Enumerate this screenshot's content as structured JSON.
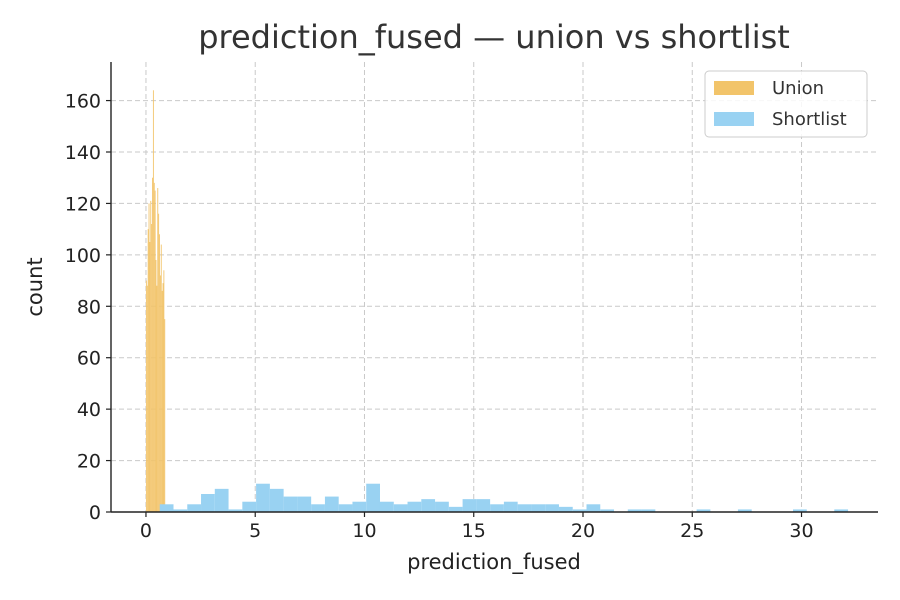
{
  "chart_data": {
    "type": "bar",
    "subtype": "histogram-overlay",
    "title": "prediction_fused — union vs shortlist",
    "xlabel": "prediction_fused",
    "ylabel": "count",
    "xlim": [
      -1.6,
      33.5
    ],
    "ylim": [
      0,
      175
    ],
    "xticks": [
      0,
      5,
      10,
      15,
      20,
      25,
      30
    ],
    "yticks": [
      0,
      20,
      40,
      60,
      80,
      100,
      120,
      140,
      160
    ],
    "grid": true,
    "legend_position": "top-right",
    "series": [
      {
        "name": "Union",
        "color": "#f2c46a",
        "bin_width": 0.04,
        "bins": [
          [
            0.0,
            90
          ],
          [
            0.04,
            88
          ],
          [
            0.08,
            110
          ],
          [
            0.12,
            120
          ],
          [
            0.16,
            105
          ],
          [
            0.2,
            121
          ],
          [
            0.24,
            112
          ],
          [
            0.28,
            130
          ],
          [
            0.32,
            164
          ],
          [
            0.36,
            128
          ],
          [
            0.4,
            125
          ],
          [
            0.44,
            98
          ],
          [
            0.48,
            88
          ],
          [
            0.52,
            126
          ],
          [
            0.56,
            116
          ],
          [
            0.6,
            108
          ],
          [
            0.64,
            92
          ],
          [
            0.68,
            104
          ],
          [
            0.72,
            86
          ],
          [
            0.76,
            89
          ],
          [
            0.8,
            94
          ],
          [
            0.84,
            75
          ]
        ]
      },
      {
        "name": "Shortlist",
        "color": "#99d2f2",
        "bin_width": 0.63,
        "bins": [
          [
            0.63,
            3
          ],
          [
            1.26,
            1
          ],
          [
            1.89,
            3
          ],
          [
            2.52,
            7
          ],
          [
            3.15,
            9
          ],
          [
            3.78,
            1
          ],
          [
            4.41,
            4
          ],
          [
            5.04,
            11
          ],
          [
            5.67,
            9
          ],
          [
            6.3,
            6
          ],
          [
            6.93,
            6
          ],
          [
            7.56,
            3
          ],
          [
            8.19,
            6
          ],
          [
            8.82,
            3
          ],
          [
            9.45,
            4
          ],
          [
            10.08,
            11
          ],
          [
            10.71,
            4
          ],
          [
            11.34,
            3
          ],
          [
            11.97,
            4
          ],
          [
            12.6,
            5
          ],
          [
            13.23,
            4
          ],
          [
            13.86,
            2
          ],
          [
            14.49,
            5
          ],
          [
            15.12,
            5
          ],
          [
            15.75,
            3
          ],
          [
            16.38,
            4
          ],
          [
            17.01,
            3
          ],
          [
            17.64,
            3
          ],
          [
            18.27,
            3
          ],
          [
            18.9,
            2
          ],
          [
            19.53,
            1
          ],
          [
            20.16,
            3
          ],
          [
            20.79,
            1
          ],
          [
            21.42,
            0
          ],
          [
            22.05,
            1
          ],
          [
            22.68,
            1
          ],
          [
            23.31,
            0
          ],
          [
            23.94,
            0
          ],
          [
            24.57,
            0
          ],
          [
            25.2,
            1
          ],
          [
            25.83,
            0
          ],
          [
            26.46,
            0
          ],
          [
            27.09,
            1
          ],
          [
            27.72,
            0
          ],
          [
            28.35,
            0
          ],
          [
            28.98,
            0
          ],
          [
            29.61,
            1
          ],
          [
            30.24,
            0
          ],
          [
            30.87,
            0
          ],
          [
            31.5,
            1
          ]
        ]
      }
    ]
  }
}
